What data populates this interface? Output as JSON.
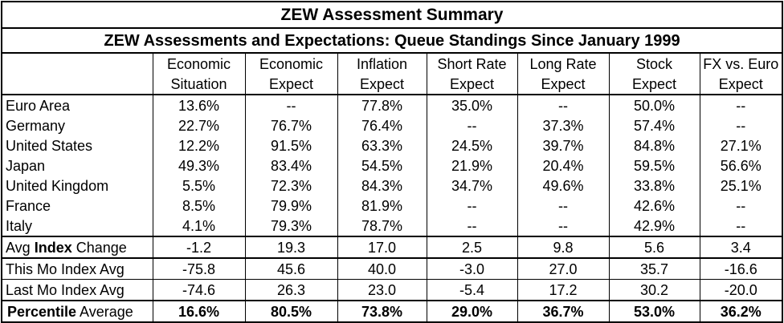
{
  "title": "ZEW Assessment Summary",
  "subtitle": "ZEW Assessments and Expectations: Queue Standings Since January 1999",
  "columns": [
    {
      "line1": "Economic",
      "line2": "Situation"
    },
    {
      "line1": "Economic",
      "line2": "Expect"
    },
    {
      "line1": "Inflation",
      "line2": "Expect"
    },
    {
      "line1": "Short Rate",
      "line2": "Expect"
    },
    {
      "line1": "Long Rate",
      "line2": "Expect"
    },
    {
      "line1": "Stock",
      "line2": "Expect"
    },
    {
      "line1": "FX vs. Euro",
      "line2": "Expect"
    }
  ],
  "countries": [
    {
      "name": "Euro Area",
      "values": [
        "13.6%",
        "--",
        "77.8%",
        "35.0%",
        "--",
        "50.0%",
        "--"
      ]
    },
    {
      "name": "Germany",
      "values": [
        "22.7%",
        "76.7%",
        "76.4%",
        "--",
        "37.3%",
        "57.4%",
        "--"
      ]
    },
    {
      "name": "United States",
      "values": [
        "12.2%",
        "91.5%",
        "63.3%",
        "24.5%",
        "39.7%",
        "84.8%",
        "27.1%"
      ]
    },
    {
      "name": "Japan",
      "values": [
        "49.3%",
        "83.4%",
        "54.5%",
        "21.9%",
        "20.4%",
        "59.5%",
        "56.6%"
      ]
    },
    {
      "name": "United Kingdom",
      "values": [
        "5.5%",
        "72.3%",
        "84.3%",
        "34.7%",
        "49.6%",
        "33.8%",
        "25.1%"
      ]
    },
    {
      "name": "France",
      "values": [
        "8.5%",
        "79.9%",
        "81.9%",
        "--",
        "--",
        "42.6%",
        "--"
      ]
    },
    {
      "name": "Italy",
      "values": [
        "4.1%",
        "79.3%",
        "78.7%",
        "--",
        "--",
        "42.9%",
        "--"
      ]
    }
  ],
  "avg_change": {
    "label_pre": "Avg ",
    "label_bold": "Index",
    "label_post": " Change",
    "values": [
      "-1.2",
      "19.3",
      "17.0",
      "2.5",
      "9.8",
      "5.6",
      "3.4"
    ]
  },
  "this_mo": {
    "label": "This Mo Index Avg",
    "values": [
      "-75.8",
      "45.6",
      "40.0",
      "-3.0",
      "27.0",
      "35.7",
      "-16.6"
    ]
  },
  "last_mo": {
    "label": "Last Mo Index Avg",
    "values": [
      "-74.6",
      "26.3",
      "23.0",
      "-5.4",
      "17.2",
      "30.2",
      "-20.0"
    ]
  },
  "percentile": {
    "label_bold": "Percentile",
    "label_post": " Average",
    "values": [
      "16.6%",
      "80.5%",
      "73.8%",
      "29.0%",
      "36.7%",
      "53.0%",
      "36.2%"
    ]
  }
}
